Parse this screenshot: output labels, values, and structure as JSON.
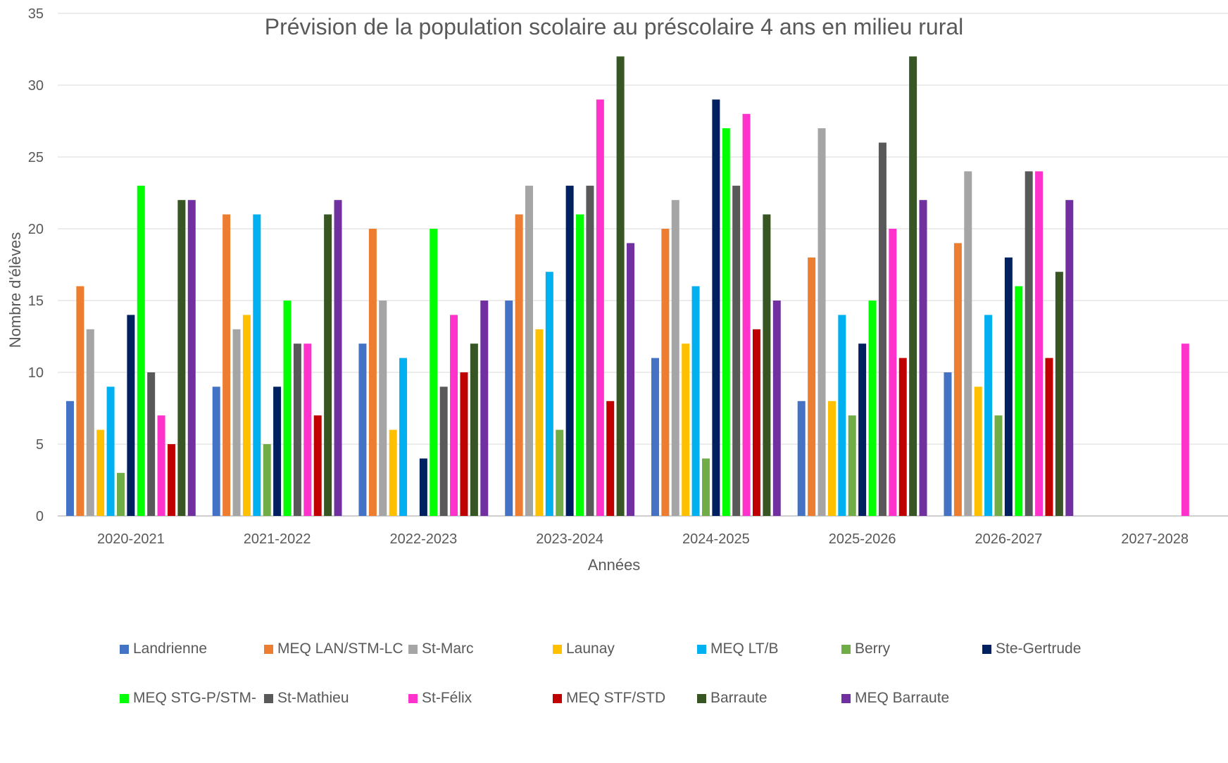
{
  "chart_data": {
    "type": "bar",
    "title": "Prévision de la population scolaire au préscolaire 4 ans en milieu rural",
    "xlabel": "Années",
    "ylabel": "Nombre d'élèves",
    "ylim": [
      0,
      35
    ],
    "yticks": [
      0,
      5,
      10,
      15,
      20,
      25,
      30,
      35
    ],
    "grid": true,
    "legend_position": "bottom",
    "categories": [
      "2020-2021",
      "2021-2022",
      "2022-2023",
      "2023-2024",
      "2024-2025",
      "2025-2026",
      "2026-2027",
      "2027-2028"
    ],
    "series": [
      {
        "name": "Landrienne",
        "color": "#4472C4",
        "values": [
          8,
          9,
          12,
          15,
          11,
          8,
          10,
          null
        ]
      },
      {
        "name": "MEQ LAN/STM-LC",
        "color": "#ED7D31",
        "values": [
          16,
          21,
          20,
          21,
          20,
          18,
          19,
          null
        ]
      },
      {
        "name": "St-Marc",
        "color": "#A5A5A5",
        "values": [
          13,
          13,
          15,
          23,
          22,
          27,
          24,
          null
        ]
      },
      {
        "name": "Launay",
        "color": "#FFC000",
        "values": [
          6,
          14,
          6,
          13,
          12,
          8,
          9,
          null
        ]
      },
      {
        "name": "MEQ LT/B",
        "color": "#00B0F0",
        "values": [
          9,
          21,
          11,
          17,
          16,
          14,
          14,
          null
        ]
      },
      {
        "name": "Berry",
        "color": "#70AD47",
        "values": [
          3,
          5,
          null,
          6,
          4,
          7,
          7,
          null
        ]
      },
      {
        "name": "Ste-Gertrude",
        "color": "#002060",
        "values": [
          14,
          9,
          4,
          23,
          29,
          12,
          18,
          null
        ]
      },
      {
        "name": "MEQ STG-P/STM-",
        "color": "#00FF00",
        "values": [
          23,
          15,
          20,
          21,
          27,
          15,
          16,
          null
        ]
      },
      {
        "name": "St-Mathieu",
        "color": "#595959",
        "values": [
          10,
          12,
          9,
          23,
          23,
          26,
          24,
          null
        ]
      },
      {
        "name": "St-Félix",
        "color": "#FF33CC",
        "values": [
          7,
          12,
          14,
          29,
          28,
          20,
          24,
          12
        ]
      },
      {
        "name": "MEQ STF/STD",
        "color": "#C00000",
        "values": [
          5,
          7,
          10,
          8,
          13,
          11,
          11,
          null
        ]
      },
      {
        "name": "Barraute",
        "color": "#375623",
        "values": [
          22,
          21,
          12,
          32,
          21,
          32,
          17,
          null
        ]
      },
      {
        "name": "MEQ  Barraute",
        "color": "#7030A0",
        "values": [
          22,
          22,
          15,
          19,
          15,
          22,
          22,
          null
        ]
      }
    ]
  }
}
